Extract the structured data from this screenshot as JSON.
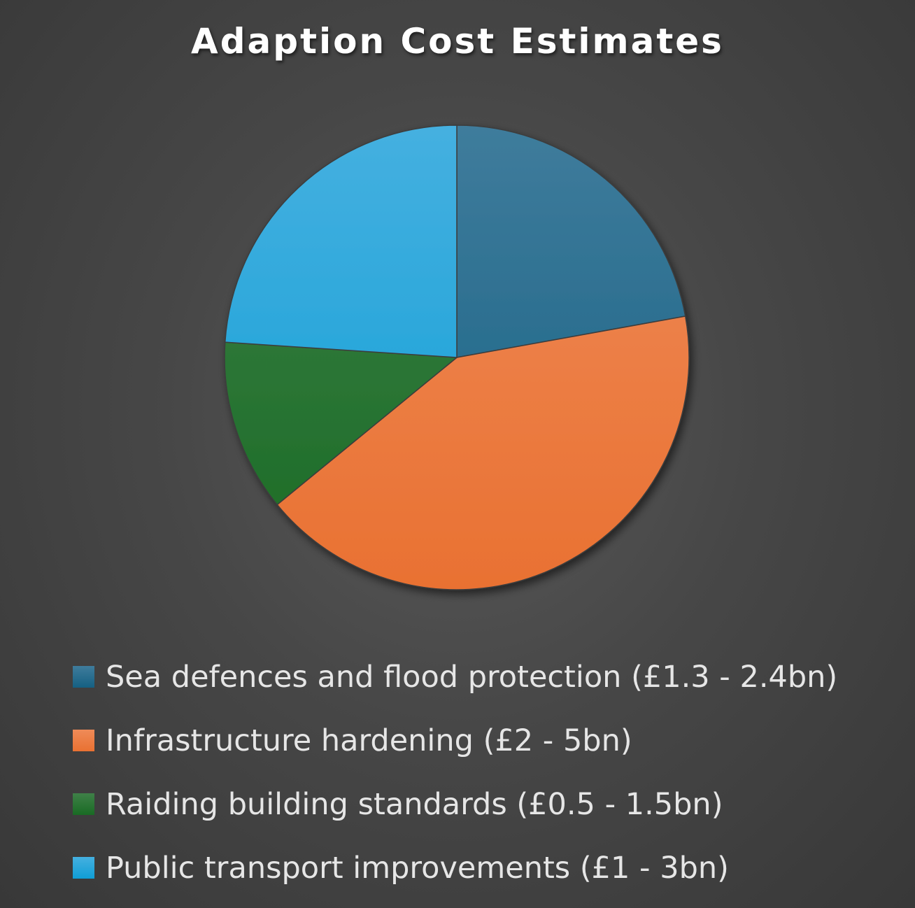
{
  "chart_data": {
    "type": "pie",
    "title": "Adaption Cost Estimates",
    "legend_position": "bottom",
    "slices": [
      {
        "label": "Sea defences and flood protection (£1.3 - 2.4bn)",
        "value": 1.85,
        "color": "#156082",
        "gradient_top": "#3f7c9c"
      },
      {
        "label": "Infrastructure hardening (£2 - 5bn)",
        "value": 3.5,
        "color": "#e97132",
        "gradient_top": "#ef8b58"
      },
      {
        "label": "Raiding building standards (£0.5 - 1.5bn)",
        "value": 1.0,
        "color": "#196b24",
        "gradient_top": "#3f8048"
      },
      {
        "label": "Public transport improvements (£1 - 3bn)",
        "value": 2.0,
        "color": "#0f9ed5",
        "gradient_top": "#45b0e0"
      }
    ]
  }
}
